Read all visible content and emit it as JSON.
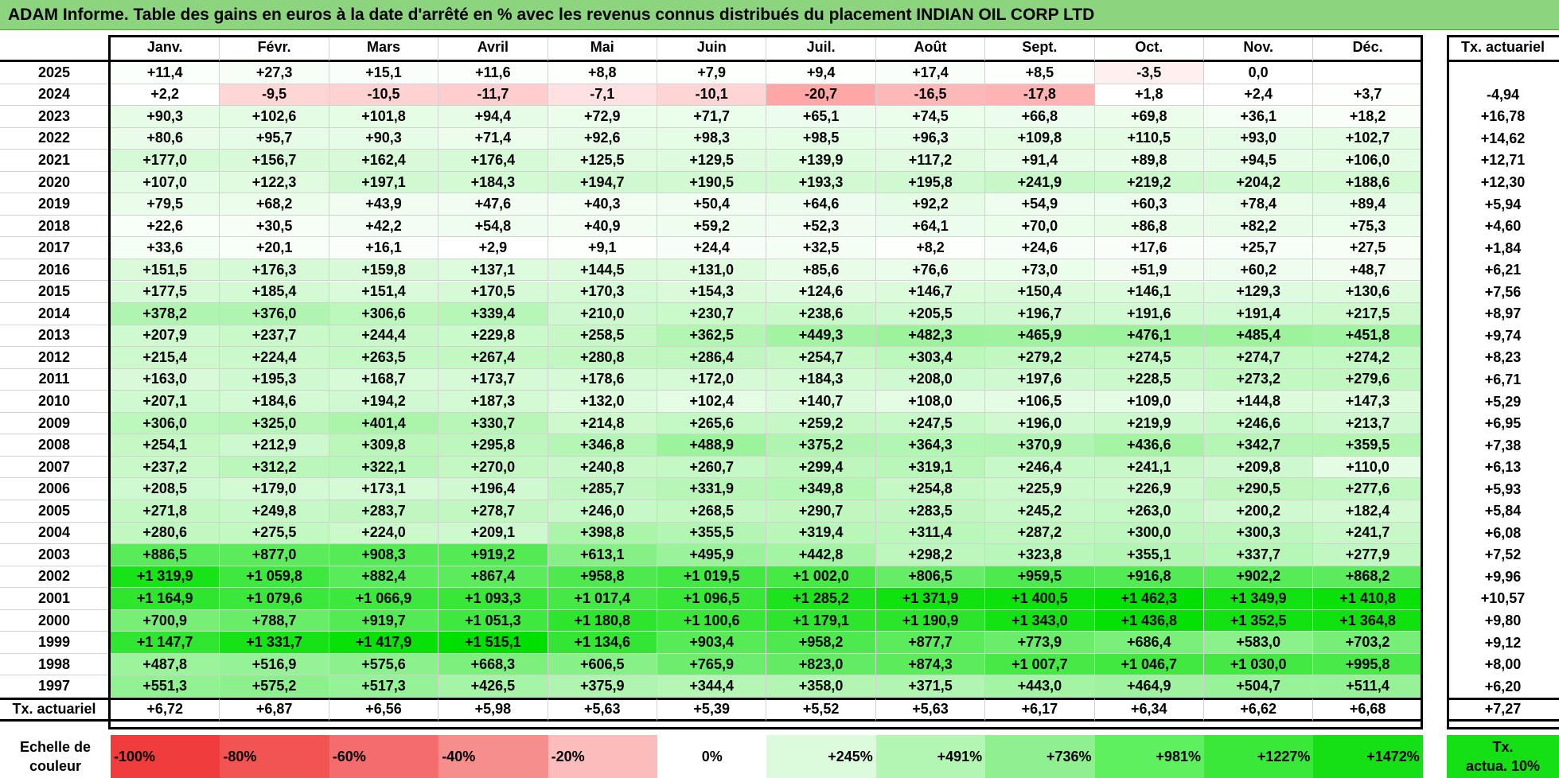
{
  "title": "ADAM Informe. Table des gains en euros à la date d'arrêté en % avec les revenus connus distribués du placement INDIAN OIL CORP LTD",
  "months": [
    "Janv.",
    "Févr.",
    "Mars",
    "Avril",
    "Mai",
    "Juin",
    "Juil.",
    "Août",
    "Sept.",
    "Oct.",
    "Nov.",
    "Déc."
  ],
  "actuariel_header": "Tx. actuariel",
  "rows": [
    {
      "year": "2025",
      "values": [
        "+11,4",
        "+27,3",
        "+15,1",
        "+11,6",
        "+8,8",
        "+7,9",
        "+9,4",
        "+17,4",
        "+8,5",
        "-3,5",
        "0,0",
        ""
      ],
      "actuariel": ""
    },
    {
      "year": "2024",
      "values": [
        "+2,2",
        "-9,5",
        "-10,5",
        "-11,7",
        "-7,1",
        "-10,1",
        "-20,7",
        "-16,5",
        "-17,8",
        "+1,8",
        "+2,4",
        "+3,7"
      ],
      "actuariel": "-4,94"
    },
    {
      "year": "2023",
      "values": [
        "+90,3",
        "+102,6",
        "+101,8",
        "+94,4",
        "+72,9",
        "+71,7",
        "+65,1",
        "+74,5",
        "+66,8",
        "+69,8",
        "+36,1",
        "+18,2"
      ],
      "actuariel": "+16,78"
    },
    {
      "year": "2022",
      "values": [
        "+80,6",
        "+95,7",
        "+90,3",
        "+71,4",
        "+92,6",
        "+98,3",
        "+98,5",
        "+96,3",
        "+109,8",
        "+110,5",
        "+93,0",
        "+102,7"
      ],
      "actuariel": "+14,62"
    },
    {
      "year": "2021",
      "values": [
        "+177,0",
        "+156,7",
        "+162,4",
        "+176,4",
        "+125,5",
        "+129,5",
        "+139,9",
        "+117,2",
        "+91,4",
        "+89,8",
        "+94,5",
        "+106,0"
      ],
      "actuariel": "+12,71"
    },
    {
      "year": "2020",
      "values": [
        "+107,0",
        "+122,3",
        "+197,1",
        "+184,3",
        "+194,7",
        "+190,5",
        "+193,3",
        "+195,8",
        "+241,9",
        "+219,2",
        "+204,2",
        "+188,6"
      ],
      "actuariel": "+12,30"
    },
    {
      "year": "2019",
      "values": [
        "+79,5",
        "+68,2",
        "+43,9",
        "+47,6",
        "+40,3",
        "+50,4",
        "+64,6",
        "+92,2",
        "+54,9",
        "+60,3",
        "+78,4",
        "+89,4"
      ],
      "actuariel": "+5,94"
    },
    {
      "year": "2018",
      "values": [
        "+22,6",
        "+30,5",
        "+42,2",
        "+54,8",
        "+40,9",
        "+59,2",
        "+52,3",
        "+64,1",
        "+70,0",
        "+86,8",
        "+82,2",
        "+75,3"
      ],
      "actuariel": "+4,60"
    },
    {
      "year": "2017",
      "values": [
        "+33,6",
        "+20,1",
        "+16,1",
        "+2,9",
        "+9,1",
        "+24,4",
        "+32,5",
        "+8,2",
        "+24,6",
        "+17,6",
        "+25,7",
        "+27,5"
      ],
      "actuariel": "+1,84"
    },
    {
      "year": "2016",
      "values": [
        "+151,5",
        "+176,3",
        "+159,8",
        "+137,1",
        "+144,5",
        "+131,0",
        "+85,6",
        "+76,6",
        "+73,0",
        "+51,9",
        "+60,2",
        "+48,7"
      ],
      "actuariel": "+6,21"
    },
    {
      "year": "2015",
      "values": [
        "+177,5",
        "+185,4",
        "+151,4",
        "+170,5",
        "+170,3",
        "+154,3",
        "+124,6",
        "+146,7",
        "+150,4",
        "+146,1",
        "+129,3",
        "+130,6"
      ],
      "actuariel": "+7,56"
    },
    {
      "year": "2014",
      "values": [
        "+378,2",
        "+376,0",
        "+306,6",
        "+339,4",
        "+210,0",
        "+230,7",
        "+238,6",
        "+205,5",
        "+196,7",
        "+191,6",
        "+191,4",
        "+217,5"
      ],
      "actuariel": "+8,97"
    },
    {
      "year": "2013",
      "values": [
        "+207,9",
        "+237,7",
        "+244,4",
        "+229,8",
        "+258,5",
        "+362,5",
        "+449,3",
        "+482,3",
        "+465,9",
        "+476,1",
        "+485,4",
        "+451,8"
      ],
      "actuariel": "+9,74"
    },
    {
      "year": "2012",
      "values": [
        "+215,4",
        "+224,4",
        "+263,5",
        "+267,4",
        "+280,8",
        "+286,4",
        "+254,7",
        "+303,4",
        "+279,2",
        "+274,5",
        "+274,7",
        "+274,2"
      ],
      "actuariel": "+8,23"
    },
    {
      "year": "2011",
      "values": [
        "+163,0",
        "+195,3",
        "+168,7",
        "+173,7",
        "+178,6",
        "+172,0",
        "+184,3",
        "+208,0",
        "+197,6",
        "+228,5",
        "+273,2",
        "+279,6"
      ],
      "actuariel": "+6,71"
    },
    {
      "year": "2010",
      "values": [
        "+207,1",
        "+184,6",
        "+194,2",
        "+187,3",
        "+132,0",
        "+102,4",
        "+140,7",
        "+108,0",
        "+106,5",
        "+109,0",
        "+144,8",
        "+147,3"
      ],
      "actuariel": "+5,29"
    },
    {
      "year": "2009",
      "values": [
        "+306,0",
        "+325,0",
        "+401,4",
        "+330,7",
        "+214,8",
        "+265,6",
        "+259,2",
        "+247,5",
        "+196,0",
        "+219,9",
        "+246,6",
        "+213,7"
      ],
      "actuariel": "+6,95"
    },
    {
      "year": "2008",
      "values": [
        "+254,1",
        "+212,9",
        "+309,8",
        "+295,8",
        "+346,8",
        "+488,9",
        "+375,2",
        "+364,3",
        "+370,9",
        "+436,6",
        "+342,7",
        "+359,5"
      ],
      "actuariel": "+7,38"
    },
    {
      "year": "2007",
      "values": [
        "+237,2",
        "+312,2",
        "+322,1",
        "+270,0",
        "+240,8",
        "+260,7",
        "+299,4",
        "+319,1",
        "+246,4",
        "+241,1",
        "+209,8",
        "+110,0"
      ],
      "actuariel": "+6,13"
    },
    {
      "year": "2006",
      "values": [
        "+208,5",
        "+179,0",
        "+173,1",
        "+196,4",
        "+285,7",
        "+331,9",
        "+349,8",
        "+254,8",
        "+225,9",
        "+226,9",
        "+290,5",
        "+277,6"
      ],
      "actuariel": "+5,93"
    },
    {
      "year": "2005",
      "values": [
        "+271,8",
        "+249,8",
        "+283,7",
        "+278,7",
        "+246,0",
        "+268,5",
        "+290,7",
        "+283,5",
        "+245,2",
        "+263,0",
        "+200,2",
        "+182,4"
      ],
      "actuariel": "+5,84"
    },
    {
      "year": "2004",
      "values": [
        "+280,6",
        "+275,5",
        "+224,0",
        "+209,1",
        "+398,8",
        "+355,5",
        "+319,4",
        "+311,4",
        "+287,2",
        "+300,0",
        "+300,3",
        "+241,7"
      ],
      "actuariel": "+6,08"
    },
    {
      "year": "2003",
      "values": [
        "+886,5",
        "+877,0",
        "+908,3",
        "+919,2",
        "+613,1",
        "+495,9",
        "+442,8",
        "+298,2",
        "+323,8",
        "+355,1",
        "+337,7",
        "+277,9"
      ],
      "actuariel": "+7,52"
    },
    {
      "year": "2002",
      "values": [
        "+1 319,9",
        "+1 059,8",
        "+882,4",
        "+867,4",
        "+958,8",
        "+1 019,5",
        "+1 002,0",
        "+806,5",
        "+959,5",
        "+916,8",
        "+902,2",
        "+868,2"
      ],
      "actuariel": "+9,96"
    },
    {
      "year": "2001",
      "values": [
        "+1 164,9",
        "+1 079,6",
        "+1 066,9",
        "+1 093,3",
        "+1 017,4",
        "+1 096,5",
        "+1 285,2",
        "+1 371,9",
        "+1 400,5",
        "+1 462,3",
        "+1 349,9",
        "+1 410,8"
      ],
      "actuariel": "+10,57"
    },
    {
      "year": "2000",
      "values": [
        "+700,9",
        "+788,7",
        "+919,7",
        "+1 051,3",
        "+1 180,8",
        "+1 100,6",
        "+1 179,1",
        "+1 190,9",
        "+1 343,0",
        "+1 436,8",
        "+1 352,5",
        "+1 364,8"
      ],
      "actuariel": "+9,80"
    },
    {
      "year": "1999",
      "values": [
        "+1 147,7",
        "+1 331,7",
        "+1 417,9",
        "+1 515,1",
        "+1 134,6",
        "+903,4",
        "+958,2",
        "+877,7",
        "+773,9",
        "+686,4",
        "+583,0",
        "+703,2"
      ],
      "actuariel": "+9,12"
    },
    {
      "year": "1998",
      "values": [
        "+487,8",
        "+516,9",
        "+575,6",
        "+668,3",
        "+606,5",
        "+765,9",
        "+823,0",
        "+874,3",
        "+1 007,7",
        "+1 046,7",
        "+1 030,0",
        "+995,8"
      ],
      "actuariel": "+8,00"
    },
    {
      "year": "1997",
      "values": [
        "+551,3",
        "+575,2",
        "+517,3",
        "+426,5",
        "+375,9",
        "+344,4",
        "+358,0",
        "+371,5",
        "+443,0",
        "+464,9",
        "+504,7",
        "+511,4"
      ],
      "actuariel": "+6,20"
    }
  ],
  "footer": {
    "label": "Tx. actuariel",
    "values": [
      "+6,72",
      "+6,87",
      "+6,56",
      "+5,98",
      "+5,63",
      "+5,39",
      "+5,52",
      "+5,63",
      "+6,17",
      "+6,34",
      "+6,62",
      "+6,68"
    ],
    "total": "+7,27"
  },
  "colors": {
    "title_bg": "#8dd47e",
    "negative_max": "#ff3c3c",
    "positive_max": "#00e000",
    "neutral": "#ffffff"
  },
  "scale": {
    "label_line1": "Echelle de",
    "label_line2": "couleur",
    "items": [
      {
        "label": "-100%",
        "color": "#f03c3c"
      },
      {
        "label": "-80%",
        "color": "#f25454"
      },
      {
        "label": "-60%",
        "color": "#f56c6c"
      },
      {
        "label": "-40%",
        "color": "#f78e8e"
      },
      {
        "label": "-20%",
        "color": "#fbbcbc"
      },
      {
        "label": "0%",
        "color": "#ffffff"
      },
      {
        "label": "+245%",
        "color": "#dcfadc"
      },
      {
        "label": "+491%",
        "color": "#b3f5b3"
      },
      {
        "label": "+736%",
        "color": "#8ef08e"
      },
      {
        "label": "+981%",
        "color": "#5ef05e"
      },
      {
        "label": "+1227%",
        "color": "#3ae83a"
      },
      {
        "label": "+1472%",
        "color": "#14e014"
      }
    ],
    "actuariel_line1": "Tx.",
    "actuariel_line2": "actua. 10%",
    "actuariel_color": "#14e014"
  }
}
